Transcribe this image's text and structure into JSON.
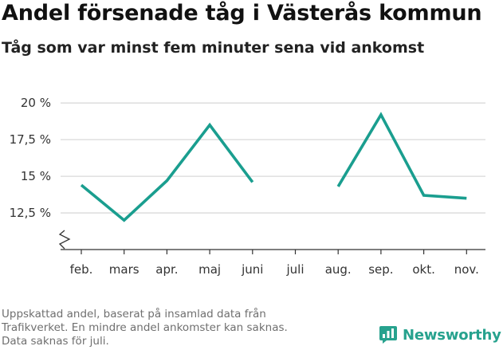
{
  "header": {
    "title": "Andel försenade tåg i Västerås kommun",
    "subtitle": "Tåg som var minst fem minuter sena vid ankomst"
  },
  "footnote": {
    "lines": [
      "Uppskattad andel, baserat på insamlad data från",
      "Trafikverket. En mindre andel ankomster kan saknas.",
      "Data saknas för juli."
    ]
  },
  "brand": {
    "name": "Newsworthy",
    "color": "#27a28e",
    "icon": "bar-chart-speech-bubble-icon"
  },
  "colors": {
    "line": "#1a9e8f",
    "grid": "#d9d9d9",
    "axis": "#333333"
  },
  "chart_data": {
    "type": "line",
    "categories": [
      "feb.",
      "mars",
      "apr.",
      "maj",
      "juni",
      "juli",
      "aug.",
      "sep.",
      "okt.",
      "nov."
    ],
    "series": [
      {
        "values": [
          14.4,
          12.0,
          14.7,
          18.5,
          14.6,
          null,
          14.3,
          19.2,
          13.7,
          13.5
        ]
      }
    ],
    "y_ticks": [
      12.5,
      15,
      17.5,
      20
    ],
    "y_tick_labels": [
      "12,5 %",
      "15 %",
      "17,5 %",
      "20 %"
    ],
    "ylim": [
      10,
      20.5
    ],
    "y_axis_break": true,
    "grid": "horizontal",
    "xlabel": "",
    "ylabel": ""
  }
}
